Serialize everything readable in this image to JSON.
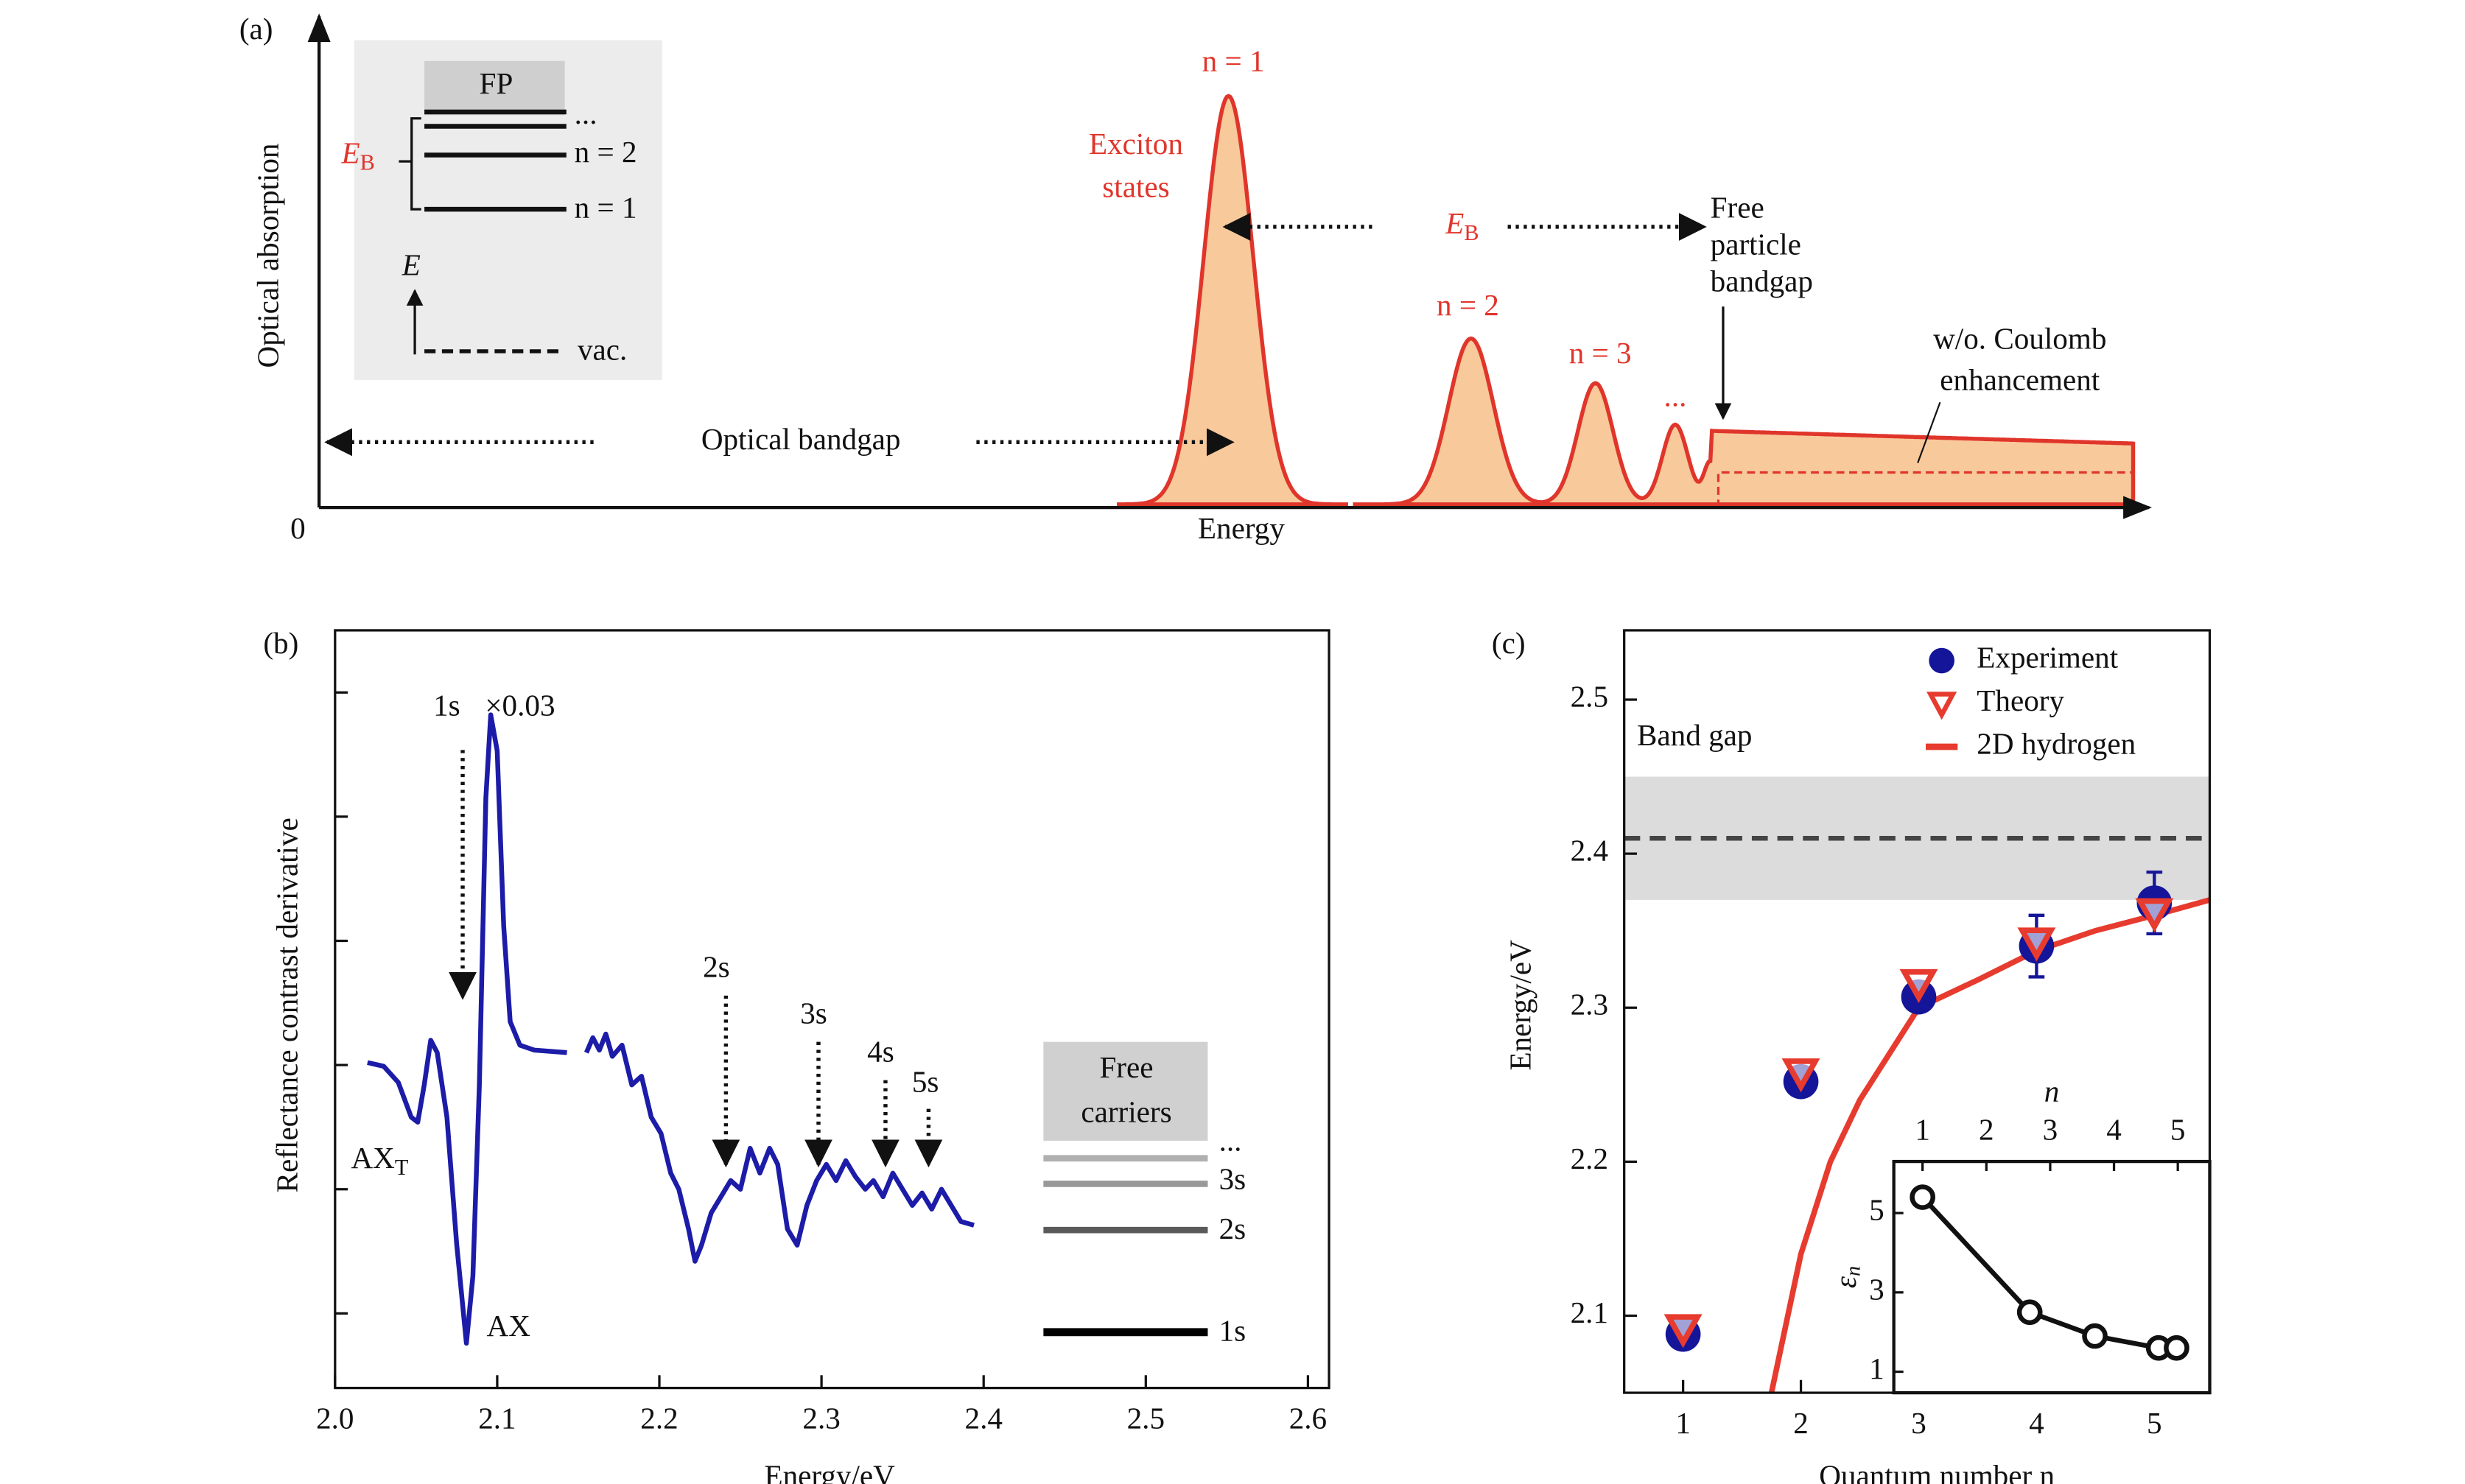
{
  "chart_data": [
    {
      "type": "diagram",
      "panel_label": "(a)",
      "ylabel": "Optical absorption",
      "xlabel": "Energy",
      "origin": 0,
      "inset": {
        "top_label": "FP",
        "ellipsis": "...",
        "levels": [
          "n = 2",
          "n = 1"
        ],
        "binding": {
          "symbol": "E",
          "sub": "B"
        },
        "energy_axis": "E",
        "vacuum": "vac."
      },
      "annotations": {
        "n1": "n = 1",
        "exciton": [
          "Exciton",
          "states"
        ],
        "binding": {
          "symbol": "E",
          "sub": "B"
        },
        "free": [
          "Free",
          "particle",
          "bandgap"
        ],
        "n2": "n = 2",
        "n3": "n = 3",
        "ellipsis": "...",
        "coulomb": [
          "w/o. Coulomb",
          "enhancement"
        ],
        "optical": "Optical bandgap"
      }
    },
    {
      "type": "line",
      "panel_label": "(b)",
      "xlabel": "Energy/eV",
      "ylabel": "Reflectance contrast derivative",
      "color": "#1c1ca8",
      "xlim": [
        2.0,
        2.613
      ],
      "xticks": [
        {
          "value": 2,
          "label": "2.0"
        },
        2.1,
        2.2,
        2.3,
        2.4,
        2.5,
        2.6
      ],
      "ylim": [
        -0.6,
        5.5
      ],
      "yticks": [
        0,
        1,
        2,
        3,
        4,
        5
      ],
      "x": [
        2.02,
        2.03,
        2.039,
        2.047,
        2.051,
        2.055,
        2.059,
        2.063,
        2.069,
        2.075,
        2.081,
        2.085,
        2.089,
        2.093,
        2.096,
        2.1,
        2.104,
        2.108,
        2.114,
        2.123,
        2.143,
        2.15,
        2.155,
        2.159,
        2.163,
        2.167,
        2.171,
        2.177,
        2.183,
        2.189,
        2.195,
        2.201,
        2.207,
        2.212,
        2.218,
        2.222,
        2.226,
        2.232,
        2.238,
        2.244,
        2.25,
        2.256,
        2.262,
        2.268,
        2.273,
        2.279,
        2.285,
        2.291,
        2.297,
        2.303,
        2.309,
        2.315,
        2.321,
        2.327,
        2.332,
        2.338,
        2.344,
        2.35,
        2.356,
        2.362,
        2.368,
        2.374,
        2.38,
        2.386,
        2.394
      ],
      "values": [
        2.02,
        1.99,
        1.86,
        1.58,
        1.54,
        1.84,
        2.2,
        2.1,
        1.58,
        0.56,
        -0.24,
        0.3,
        1.84,
        4.15,
        4.82,
        4.53,
        3.12,
        2.35,
        2.16,
        2.12,
        2.1,
        null,
        2.1,
        2.22,
        2.12,
        2.25,
        2.07,
        2.16,
        1.84,
        1.91,
        1.58,
        1.45,
        1.13,
        1.0,
        0.68,
        0.42,
        0.55,
        0.81,
        0.94,
        1.07,
        1.0,
        1.33,
        1.13,
        1.33,
        1.2,
        0.68,
        0.55,
        0.87,
        1.07,
        1.2,
        1.07,
        1.23,
        1.1,
        1.0,
        1.07,
        0.94,
        1.13,
        1.0,
        0.87,
        0.97,
        0.84,
        1.0,
        0.87,
        0.74,
        0.71
      ],
      "annotations": {
        "s1": "1s",
        "scale": "×0.03",
        "axt": {
          "base": "AX",
          "sub": "T"
        },
        "ax": "AX",
        "s2": "2s",
        "s3": "3s",
        "s4": "4s",
        "s5": "5s"
      },
      "levels": {
        "title": [
          "Free",
          "carriers"
        ],
        "labels": [
          "...",
          "3s",
          "2s",
          "1s"
        ]
      }
    },
    {
      "type": "scatter",
      "panel_label": "(c)",
      "xlabel": "Quantum number n",
      "ylabel": "Energy/eV",
      "xlim": [
        0.5,
        5.47
      ],
      "xticks": [
        1,
        2,
        3,
        4,
        5
      ],
      "ylim": [
        2.05,
        2.545
      ],
      "yticks": [
        2.1,
        2.2,
        2.3,
        2.4,
        2.5
      ],
      "band_gap": {
        "label": "Band gap",
        "value": 2.41,
        "range": [
          2.37,
          2.45
        ]
      },
      "legend": "upper right",
      "series": [
        {
          "name": "Experiment",
          "color": "#15159a",
          "marker": "circle",
          "x": [
            1,
            2,
            3,
            4,
            5
          ],
          "values": [
            2.088,
            2.252,
            2.307,
            2.34,
            2.368
          ],
          "errors": [
            null,
            null,
            0.008,
            0.02,
            0.02
          ]
        },
        {
          "name": "Theory",
          "color": "#e63b2e",
          "marker": "triangle-down",
          "x": [
            1,
            2,
            3,
            4,
            5
          ],
          "values": [
            2.092,
            2.258,
            2.316,
            2.343,
            2.362
          ]
        },
        {
          "name": "2D hydrogen",
          "color": "#e63b2e",
          "marker": "line",
          "x": [
            1.75,
            2,
            2.25,
            2.5,
            3,
            3.5,
            4,
            4.5,
            5,
            5.47
          ],
          "values": [
            2.05,
            2.14,
            2.2,
            2.24,
            2.3,
            2.318,
            2.337,
            2.35,
            2.36,
            2.37
          ]
        }
      ],
      "inset": {
        "xlabel": "n",
        "ylabel": {
          "symbol": "ε",
          "sub": "n"
        },
        "xlim": [
          0.55,
          5.5
        ],
        "ylim": [
          0.47,
          6.3
        ],
        "xticks": [
          1,
          2,
          3,
          4,
          5
        ],
        "yticks": [
          1,
          3,
          5
        ],
        "x": [
          1,
          2.68,
          3.7,
          4.7,
          4.98
        ],
        "values": [
          5.4,
          2.5,
          1.9,
          1.6,
          1.6
        ]
      }
    }
  ]
}
